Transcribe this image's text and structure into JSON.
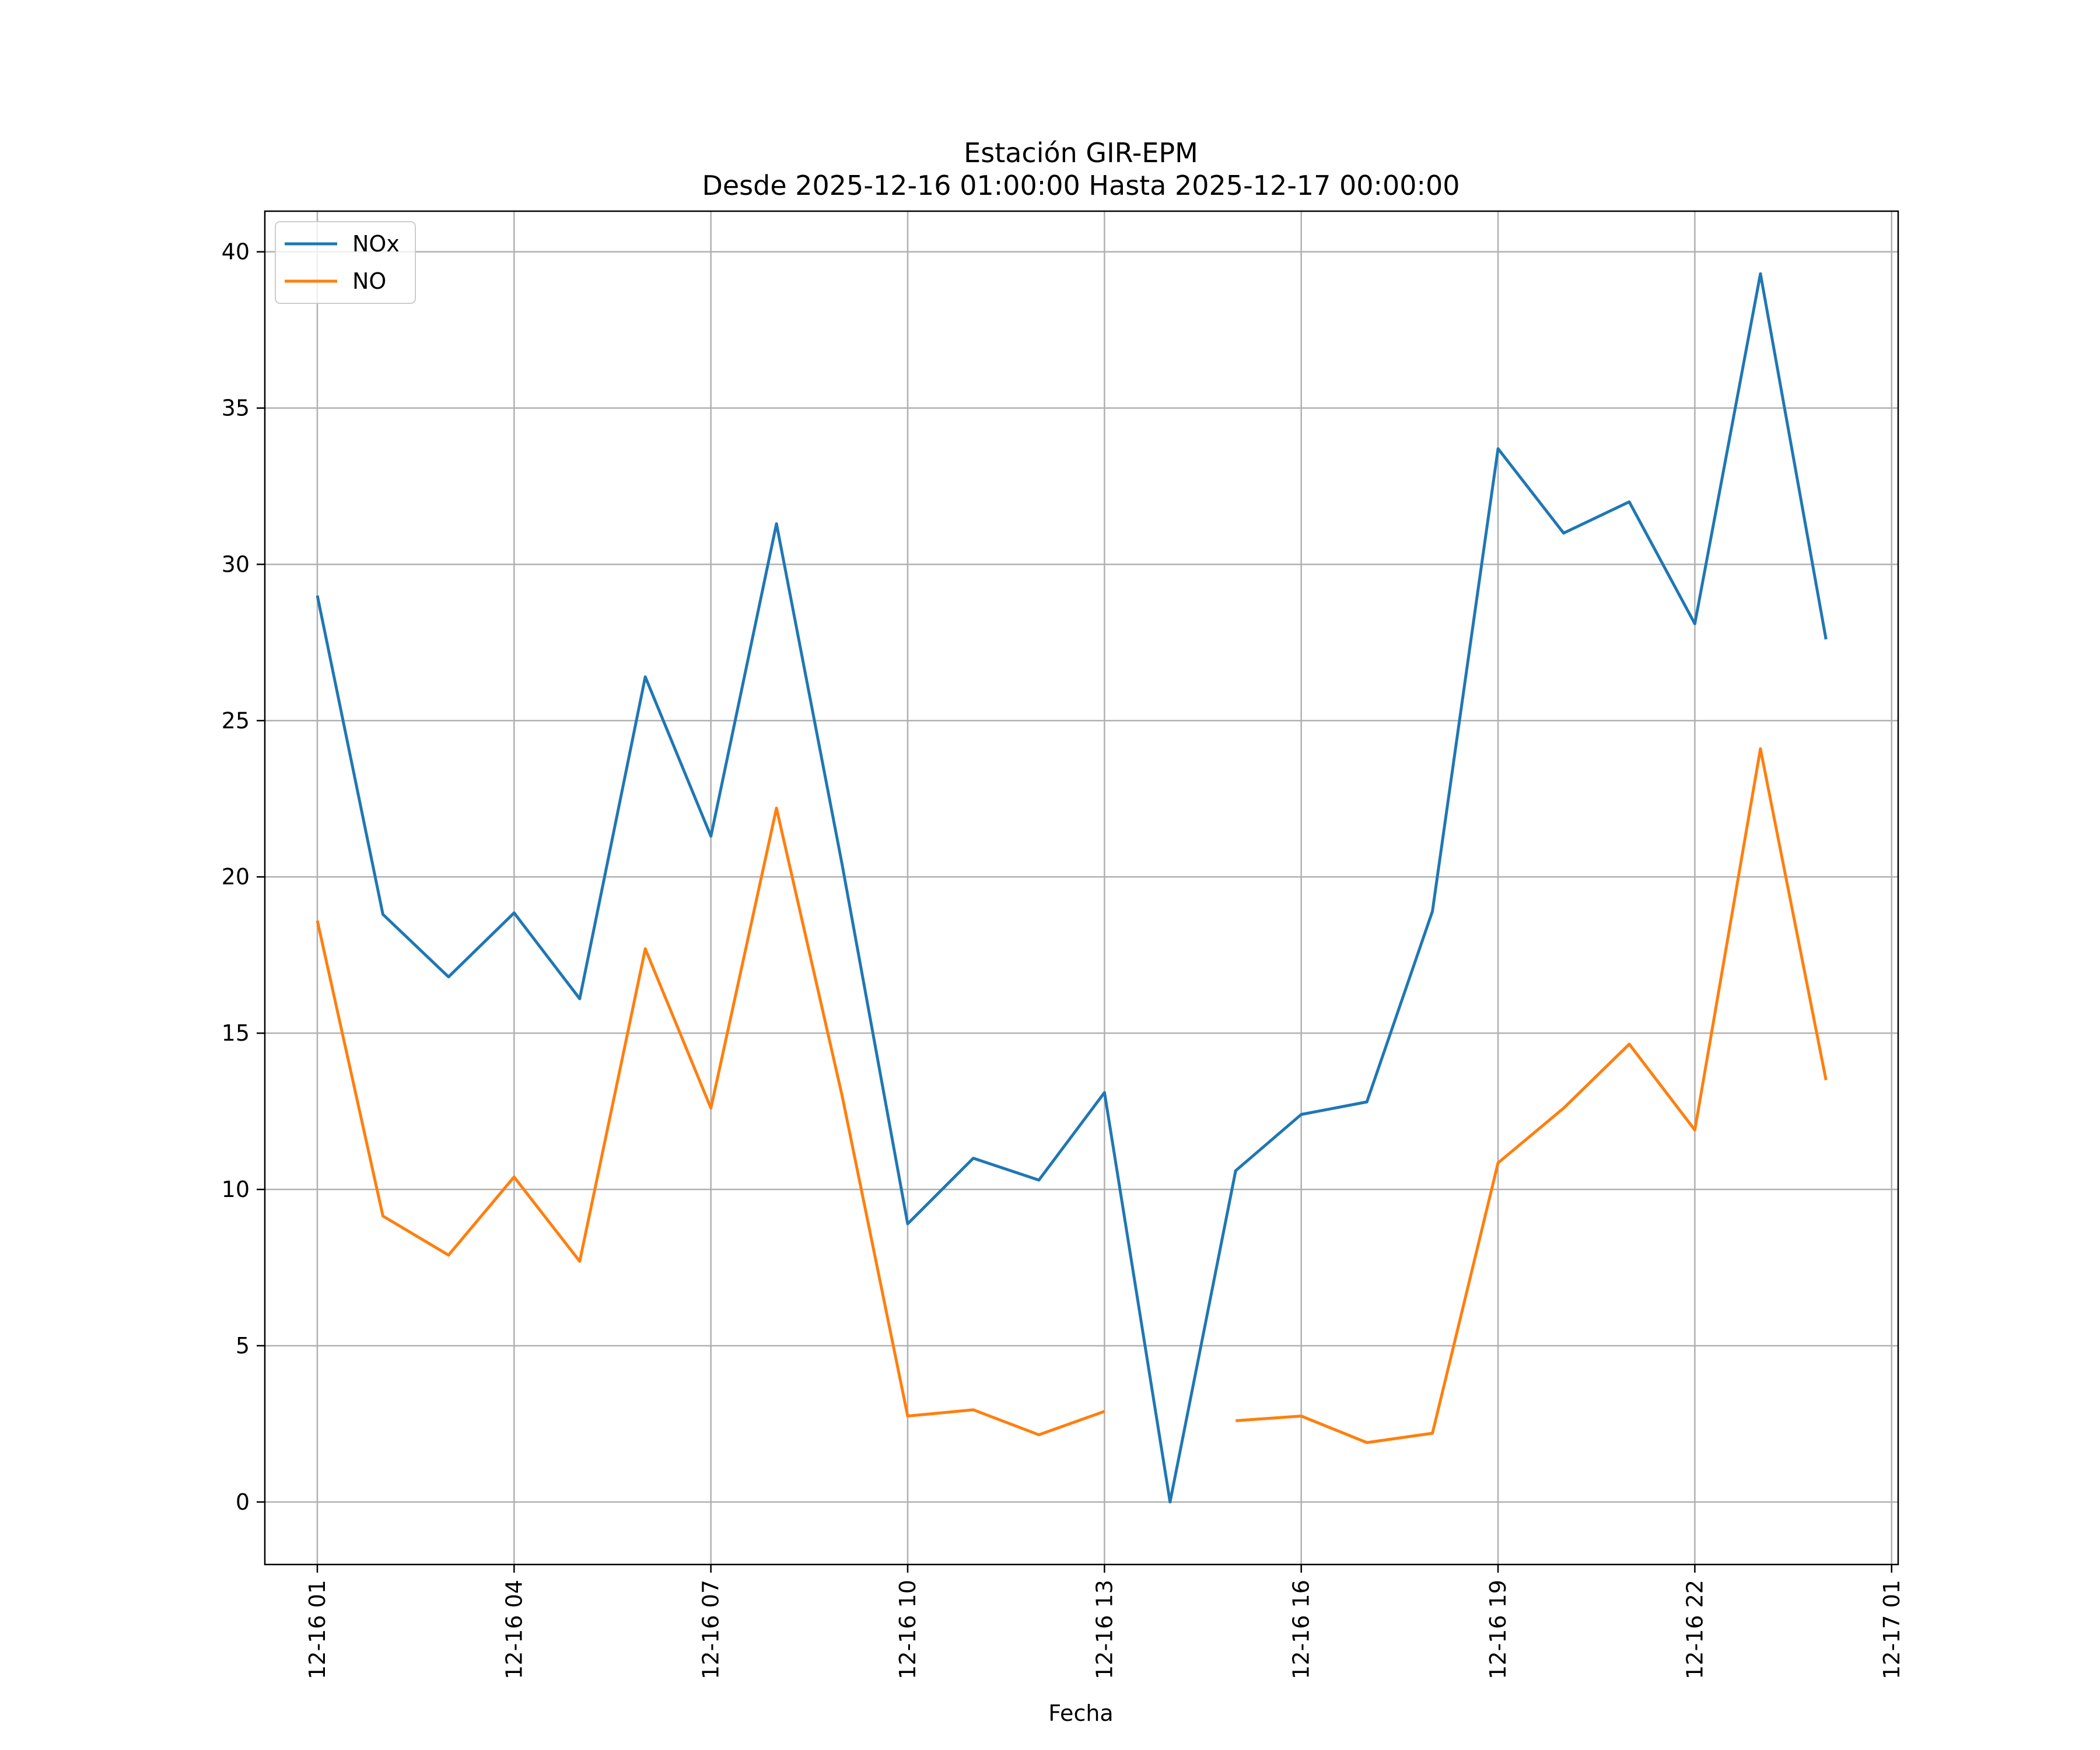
{
  "chart_data": {
    "type": "line",
    "title": "Estación GIR-EPM",
    "subtitle": "Desde 2025-12-16 01:00:00 Hasta 2025-12-17 00:00:00",
    "xlabel": "Fecha",
    "ylabel": "",
    "x_unit": "hours since 2025-12-16 00:00",
    "xlim": [
      0.2,
      25.1
    ],
    "ylim": [
      -2,
      41.3
    ],
    "x_ticks": [
      {
        "value": 1,
        "label": "12-16 01"
      },
      {
        "value": 4,
        "label": "12-16 04"
      },
      {
        "value": 7,
        "label": "12-16 07"
      },
      {
        "value": 10,
        "label": "12-16 10"
      },
      {
        "value": 13,
        "label": "12-16 13"
      },
      {
        "value": 16,
        "label": "12-16 16"
      },
      {
        "value": 19,
        "label": "12-16 19"
      },
      {
        "value": 22,
        "label": "12-16 22"
      },
      {
        "value": 25,
        "label": "12-17 01"
      }
    ],
    "y_ticks": [
      0,
      5,
      10,
      15,
      20,
      25,
      30,
      35,
      40
    ],
    "grid": true,
    "legend_position": "upper-left",
    "x": [
      1,
      2,
      3,
      4,
      5,
      6,
      7,
      8,
      9,
      10,
      11,
      12,
      13,
      14,
      15,
      16,
      17,
      18,
      19,
      20,
      21,
      22,
      23,
      24
    ],
    "series": [
      {
        "name": "NOx",
        "color": "#1f77b4",
        "values": [
          29.0,
          18.8,
          16.8,
          18.85,
          16.1,
          26.4,
          21.3,
          31.3,
          20.4,
          8.9,
          11.0,
          10.3,
          13.1,
          0.0,
          10.6,
          12.4,
          12.8,
          18.9,
          33.7,
          31.0,
          32.0,
          28.1,
          39.3,
          27.6
        ]
      },
      {
        "name": "NO",
        "color": "#ff7f0e",
        "values": [
          18.6,
          9.15,
          7.9,
          10.4,
          7.7,
          17.7,
          12.6,
          22.2,
          13.0,
          2.75,
          2.95,
          2.15,
          2.9,
          null,
          2.6,
          2.75,
          1.9,
          2.2,
          10.85,
          12.6,
          14.65,
          11.9,
          24.1,
          13.5
        ]
      }
    ]
  }
}
